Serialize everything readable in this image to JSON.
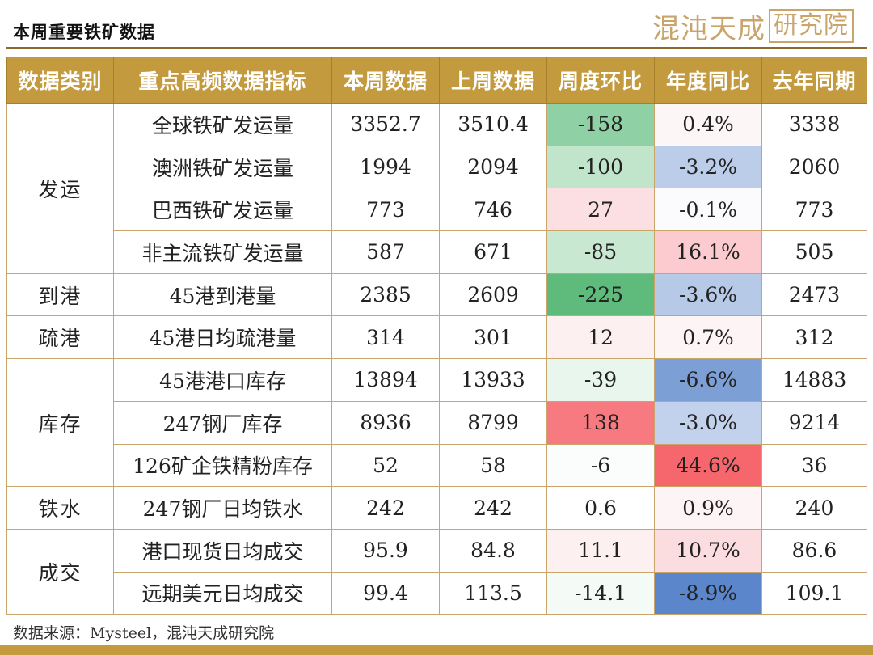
{
  "title": "本周重要铁矿数据",
  "logo": {
    "text": "混沌天成",
    "boxed": "研究院"
  },
  "headers": [
    "数据类别",
    "重点高频数据指标",
    "本周数据",
    "上周数据",
    "周度环比",
    "年度同比",
    "去年同期"
  ],
  "categories": [
    {
      "label": "发运",
      "start": 0,
      "span": 4
    },
    {
      "label": "到港",
      "start": 4,
      "span": 1
    },
    {
      "label": "疏港",
      "start": 5,
      "span": 1
    },
    {
      "label": "库存",
      "start": 6,
      "span": 3
    },
    {
      "label": "铁水",
      "start": 9,
      "span": 1
    },
    {
      "label": "成交",
      "start": 10,
      "span": 2
    }
  ],
  "rows": [
    {
      "indicator": "全球铁矿发运量",
      "this_week": "3352.7",
      "last_week": "3510.4",
      "wow": "-158",
      "yoy": "0.4%",
      "last_year": "3338",
      "wow_color": "#8fd0a4",
      "yoy_color": "#fdf6f7"
    },
    {
      "indicator": "澳洲铁矿发运量",
      "this_week": "1994",
      "last_week": "2094",
      "wow": "-100",
      "yoy": "-3.2%",
      "last_year": "2060",
      "wow_color": "#c0e5cb",
      "yoy_color": "#bccde9"
    },
    {
      "indicator": "巴西铁矿发运量",
      "this_week": "773",
      "last_week": "746",
      "wow": "27",
      "yoy": "-0.1%",
      "last_year": "773",
      "wow_color": "#fbdfe2",
      "yoy_color": "#fbfbfd"
    },
    {
      "indicator": "非主流铁矿发运量",
      "this_week": "587",
      "last_week": "671",
      "wow": "-85",
      "yoy": "16.1%",
      "last_year": "505",
      "wow_color": "#c9e8d2",
      "yoy_color": "#fbcbcf"
    },
    {
      "indicator": "45港到港量",
      "this_week": "2385",
      "last_week": "2609",
      "wow": "-225",
      "yoy": "-3.6%",
      "last_year": "2473",
      "wow_color": "#5fbb7c",
      "yoy_color": "#b6c9e7"
    },
    {
      "indicator": "45港日均疏港量",
      "this_week": "314",
      "last_week": "301",
      "wow": "12",
      "yoy": "0.7%",
      "last_year": "312",
      "wow_color": "#fdf0f1",
      "yoy_color": "#fdf4f5"
    },
    {
      "indicator": "45港港口库存",
      "this_week": "13894",
      "last_week": "13933",
      "wow": "-39",
      "yoy": "-6.6%",
      "last_year": "14883",
      "wow_color": "#e9f6ed",
      "yoy_color": "#7c9fd5"
    },
    {
      "indicator": "247钢厂库存",
      "this_week": "8936",
      "last_week": "8799",
      "wow": "138",
      "yoy": "-3.0%",
      "last_year": "9214",
      "wow_color": "#f67a80",
      "yoy_color": "#c2d2ec"
    },
    {
      "indicator": "126矿企铁精粉库存",
      "this_week": "52",
      "last_week": "58",
      "wow": "-6",
      "yoy": "44.6%",
      "last_year": "36",
      "wow_color": "#fafdfb",
      "yoy_color": "#f5676d"
    },
    {
      "indicator": "247钢厂日均铁水",
      "this_week": "242",
      "last_week": "242",
      "wow": "0.6",
      "yoy": "0.9%",
      "last_year": "240",
      "wow_color": "#ffffff",
      "yoy_color": "#fdf4f5"
    },
    {
      "indicator": "港口现货日均成交",
      "this_week": "95.9",
      "last_week": "84.8",
      "wow": "11.1",
      "yoy": "10.7%",
      "last_year": "86.6",
      "wow_color": "#fdf0f1",
      "yoy_color": "#fbdde0"
    },
    {
      "indicator": "远期美元日均成交",
      "this_week": "99.4",
      "last_week": "113.5",
      "wow": "-14.1",
      "yoy": "-8.9%",
      "last_year": "109.1",
      "wow_color": "#f4faf6",
      "yoy_color": "#5b86cc"
    }
  ],
  "footer": "数据来源：Mysteel，混沌天成研究院"
}
